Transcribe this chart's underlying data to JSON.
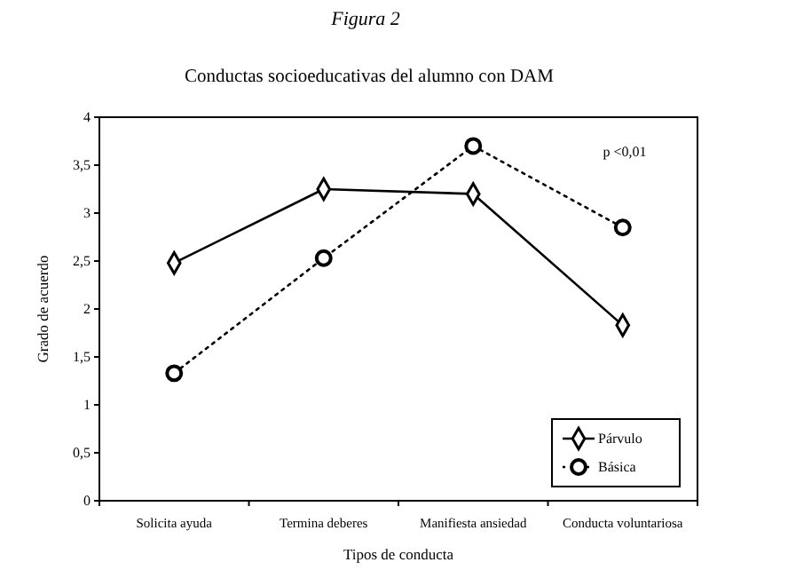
{
  "chart_data": {
    "type": "line",
    "title": "Conductas socioeducativas del alumno con DAM",
    "xlabel": "Tipos de conducta",
    "ylabel": "Grado de acuerdo",
    "annotations": [
      "Figura 2",
      "p <0,01"
    ],
    "categories": [
      "Solicita ayuda",
      "Termina deberes",
      "Manifiesta ansiedad",
      "Conducta voluntariosa"
    ],
    "series": [
      {
        "name": "Párvulo",
        "color": "#000000",
        "values": [
          2.48,
          3.25,
          3.2,
          1.83
        ],
        "marker": "diamond",
        "line_style": "solid"
      },
      {
        "name": "Básica",
        "color": "#000000",
        "values": [
          1.33,
          2.53,
          3.7,
          2.85
        ],
        "marker": "circle",
        "line_style": "dotted"
      }
    ],
    "ylim": [
      0,
      4
    ],
    "yticks": [
      0,
      {
        "value": 0.5,
        "label": "0,5"
      },
      1,
      {
        "value": 1.5,
        "label": "1,5"
      },
      2,
      {
        "value": 2.5,
        "label": "2,5"
      },
      3,
      {
        "value": 3.5,
        "label": "3,5"
      },
      4
    ],
    "grid": false,
    "legend": "bottom right"
  }
}
